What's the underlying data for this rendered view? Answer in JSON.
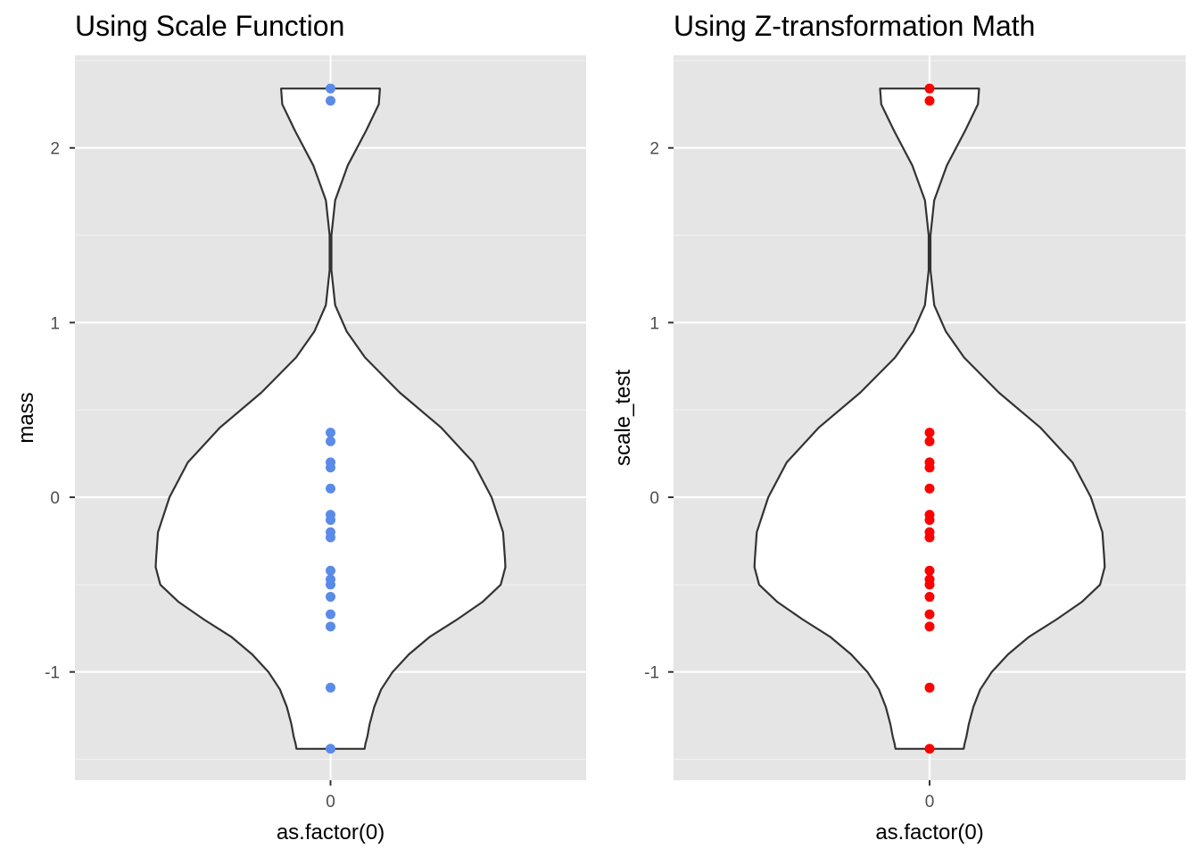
{
  "chart_data": [
    {
      "type": "violin",
      "title": "Using Scale Function",
      "xlabel": "as.factor(0)",
      "ylabel": "mass",
      "categories": [
        "0"
      ],
      "ylim": [
        -1.62,
        2.53
      ],
      "yticks": [
        -1,
        0,
        1,
        2
      ],
      "ytick_labels": [
        "-1",
        "0",
        "1",
        "2"
      ],
      "grid": true,
      "point_color": "#5B8BE8",
      "points": [
        2.34,
        2.27,
        0.37,
        0.32,
        0.2,
        0.17,
        0.05,
        -0.1,
        -0.13,
        -0.2,
        -0.23,
        -0.42,
        -0.47,
        -0.5,
        -0.57,
        -0.67,
        -0.74,
        -1.09,
        -1.44
      ]
    },
    {
      "type": "violin",
      "title": "Using Z-transformation Math",
      "xlabel": "as.factor(0)",
      "ylabel": "scale_test",
      "categories": [
        "0"
      ],
      "ylim": [
        -1.62,
        2.53
      ],
      "yticks": [
        -1,
        0,
        1,
        2
      ],
      "ytick_labels": [
        "-1",
        "0",
        "1",
        "2"
      ],
      "grid": true,
      "point_color": "#FF0000",
      "points": [
        2.34,
        2.27,
        0.37,
        0.32,
        0.2,
        0.17,
        0.05,
        -0.1,
        -0.13,
        -0.2,
        -0.23,
        -0.42,
        -0.47,
        -0.5,
        -0.57,
        -0.67,
        -0.74,
        -1.09,
        -1.44
      ]
    }
  ],
  "violin_shape": {
    "y": [
      2.34,
      2.25,
      2.1,
      1.9,
      1.7,
      1.5,
      1.3,
      1.1,
      0.95,
      0.8,
      0.6,
      0.4,
      0.2,
      0.0,
      -0.2,
      -0.35,
      -0.4,
      -0.5,
      -0.6,
      -0.7,
      -0.8,
      -0.9,
      -1.0,
      -1.1,
      -1.2,
      -1.3,
      -1.37,
      -1.41,
      -1.44
    ],
    "half_width": [
      0.215,
      0.21,
      0.155,
      0.075,
      0.02,
      0.004,
      0.004,
      0.02,
      0.07,
      0.15,
      0.3,
      0.48,
      0.62,
      0.7,
      0.75,
      0.758,
      0.76,
      0.74,
      0.66,
      0.55,
      0.43,
      0.34,
      0.27,
      0.22,
      0.19,
      0.17,
      0.16,
      0.152,
      0.148
    ]
  }
}
